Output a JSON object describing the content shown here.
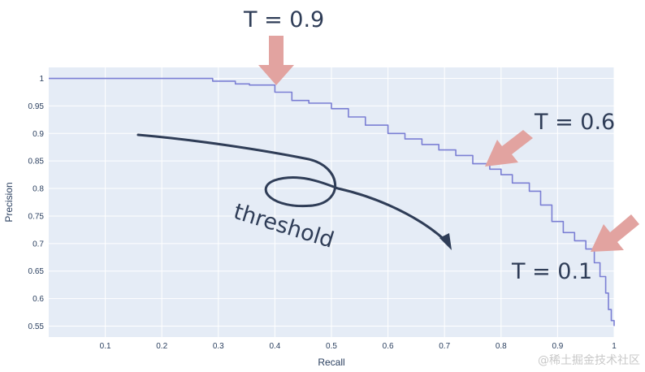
{
  "chart_data": {
    "type": "line",
    "title": "",
    "xlabel": "Recall",
    "ylabel": "Precision",
    "xlim": [
      0,
      1
    ],
    "ylim": [
      0.53,
      1.02
    ],
    "xticks": [
      0.1,
      0.2,
      0.3,
      0.4,
      0.5,
      0.6,
      0.7,
      0.8,
      0.9,
      1
    ],
    "xtick_labels": [
      "0.1",
      "0.2",
      "0.3",
      "0.4",
      "0.5",
      "0.6",
      "0.7",
      "0.8",
      "0.9",
      "1"
    ],
    "yticks": [
      0.55,
      0.6,
      0.65,
      0.7,
      0.75,
      0.8,
      0.85,
      0.9,
      0.95,
      1
    ],
    "ytick_labels": [
      "0.55",
      "0.6",
      "0.65",
      "0.7",
      "0.75",
      "0.8",
      "0.85",
      "0.9",
      "0.95",
      "1"
    ],
    "grid": true,
    "background": "#e5ecf6",
    "series": [
      {
        "color": "#7b7fd4",
        "x": [
          0.0,
          0.27,
          0.29,
          0.33,
          0.355,
          0.39,
          0.4,
          0.43,
          0.46,
          0.5,
          0.53,
          0.56,
          0.6,
          0.63,
          0.66,
          0.69,
          0.72,
          0.75,
          0.78,
          0.8,
          0.82,
          0.85,
          0.87,
          0.89,
          0.91,
          0.93,
          0.95,
          0.965,
          0.975,
          0.985,
          0.99,
          0.995,
          1.0
        ],
        "y": [
          1.0,
          1.0,
          0.995,
          0.99,
          0.988,
          0.988,
          0.975,
          0.96,
          0.955,
          0.945,
          0.93,
          0.915,
          0.9,
          0.89,
          0.88,
          0.87,
          0.86,
          0.845,
          0.835,
          0.825,
          0.81,
          0.795,
          0.77,
          0.74,
          0.72,
          0.705,
          0.69,
          0.665,
          0.64,
          0.61,
          0.58,
          0.56,
          0.55
        ]
      }
    ],
    "annotations": [
      {
        "text": "T = 0.9",
        "x": 0.4,
        "y": 0.99
      },
      {
        "text": "T = 0.6",
        "x": 0.77,
        "y": 0.84
      },
      {
        "text": "T = 0.1",
        "x": 0.96,
        "y": 0.7
      },
      {
        "text": "threshold",
        "x": 0.35,
        "y": 0.73
      }
    ],
    "arrow_color": "#e2a3a0",
    "hand_arrow_color": "#2f3d57"
  },
  "watermark": "@稀土掘金技术社区"
}
